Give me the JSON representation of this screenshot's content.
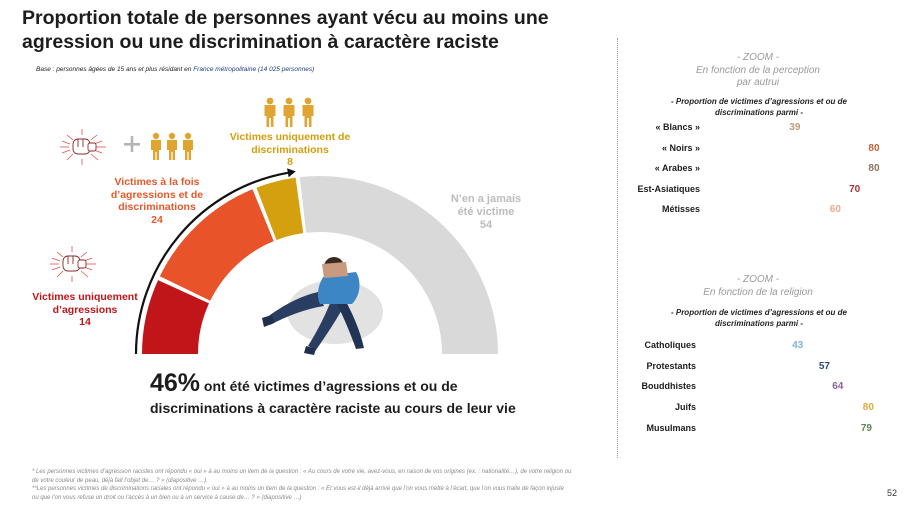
{
  "title": "Proportion totale de personnes ayant vécu au moins une agression ou une discrimination à caractère raciste",
  "base_prefix": "Base : personnes âgées de 15 ans et plus résidant en ",
  "base_highlight": "France métropolitaine (14 025 personnes)",
  "summary": {
    "percent": "46%",
    "line1": " ont été victimes d’agressions et ou de",
    "line2": "discriminations à caractère raciste au cours de leur vie"
  },
  "footnotes": [
    "* Les personnes victimes d’agression racistes ont répondu « oui » à au moins un item de la question : « Au cours de votre vie, avez-vous, en raison de vos origines (ex. : nationalité…), de votre religion ou de votre couleur de peau, déjà fait l’objet de… ? » (diapositive …).",
    "**Les personnes victimes  de discriminations raciales ont répondu « oui » à au moins un item de la question : « Et vous est-il déjà arrivé que l’on vous mette à l’écart, que l’on vous traite de façon injuste ou que l’on vous refuse un droit ou l’accès à un bien ou à un service à cause de… ? » (diapositive …)"
  ],
  "page_number": "52",
  "colors": {
    "agressions": "#c0161a",
    "both": "#e8532a",
    "discriminations": "#d4a00f",
    "never": "#d9d9d9"
  },
  "icons": [
    "punch-icon",
    "people-group-icon",
    "plus-icon",
    "seated-person-figure",
    "man-woman-icon",
    "religion-symbols-icon"
  ],
  "chart_data": [
    {
      "type": "gauge",
      "title": "",
      "categories": [
        "Victimes uniquement d’agressions",
        "Victimes à la fois d’agressions et de discriminations",
        "Victimes uniquement de discriminations",
        "N’en a jamais été victime"
      ],
      "values": [
        14,
        24,
        8,
        54
      ],
      "colors": [
        "#c0161a",
        "#e8532a",
        "#d4a00f",
        "#d9d9d9"
      ],
      "labels": [
        {
          "lines": [
            "Victimes uniquement",
            "d’agressions"
          ],
          "value": "14"
        },
        {
          "lines": [
            "Victimes à la fois",
            "d’agressions et de",
            "discriminations"
          ],
          "value": "24"
        },
        {
          "lines": [
            "Victimes uniquement de",
            "discriminations"
          ],
          "value": "8"
        },
        {
          "lines": [
            "N’en a jamais",
            "été victime"
          ],
          "value": "54"
        }
      ]
    },
    {
      "type": "bar",
      "orientation": "horizontal",
      "zoom": "- ZOOM -",
      "subtitle": "En fonction de la perception par autrui",
      "heading": "- Proportion de victimes d’agressions et ou de discriminations parmi -",
      "categories": [
        "« Blancs »",
        "« Noirs »",
        "« Arabes »",
        "Est-Asiatiques",
        "Métisses"
      ],
      "values": [
        39,
        80,
        80,
        70,
        60
      ],
      "colors": [
        "#c19a7e",
        "#b9673a",
        "#8c7462",
        "#a8362d",
        "#eea98c"
      ],
      "xlim": [
        0,
        80
      ]
    },
    {
      "type": "bar",
      "orientation": "horizontal",
      "zoom": "- ZOOM -",
      "subtitle": "En fonction de la religion",
      "heading": "- Proportion de victimes d’agressions et ou de discriminations parmi -",
      "categories": [
        "Catholiques",
        "Protestants",
        "Bouddhistes",
        "Juifs",
        "Musulmans"
      ],
      "values": [
        43,
        57,
        64,
        80,
        79
      ],
      "colors": [
        "#7fb4d8",
        "#2d4d73",
        "#86629a",
        "#e3a83b",
        "#5a8850"
      ],
      "xlim": [
        0,
        80
      ]
    }
  ]
}
